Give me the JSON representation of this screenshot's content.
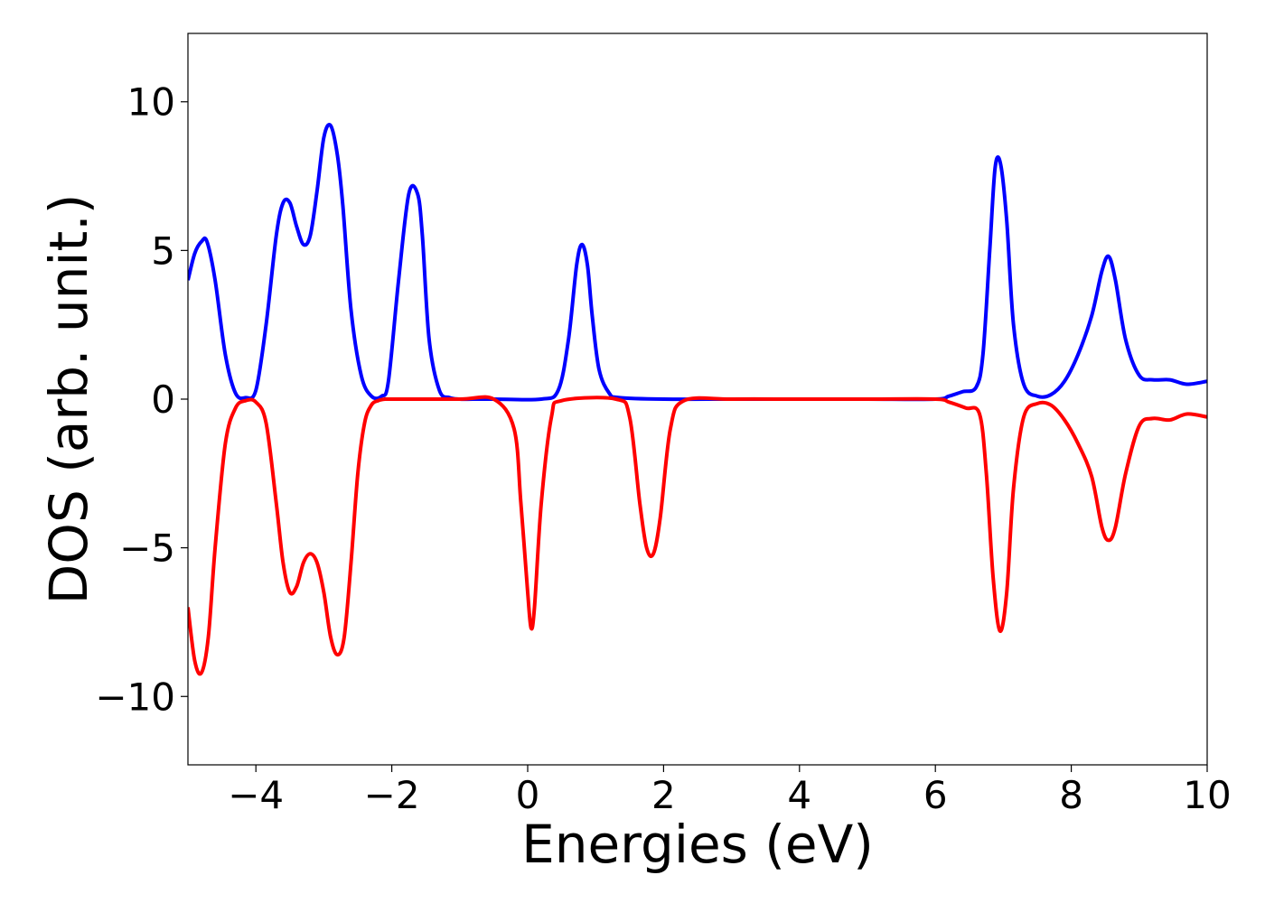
{
  "chart_data": {
    "type": "line",
    "title": "",
    "xlabel": "Energies (eV)",
    "ylabel": "DOS (arb. unit.)",
    "xlim": [
      -5,
      10
    ],
    "ylim": [
      -12.3,
      12.3
    ],
    "grid": false,
    "legend": "none",
    "x_ticks": [
      -4,
      -2,
      0,
      2,
      4,
      6,
      8,
      10
    ],
    "x_tick_labels": [
      "−4",
      "−2",
      "0",
      "2",
      "4",
      "6",
      "8",
      "10"
    ],
    "y_ticks": [
      10,
      5,
      0,
      -5,
      -10
    ],
    "y_tick_labels": [
      "10",
      "5",
      "0",
      "−5",
      "−10"
    ],
    "series": [
      {
        "color": "#0000ff",
        "x": [
          -5.0,
          -4.9,
          -4.8,
          -4.72,
          -4.6,
          -4.45,
          -4.3,
          -4.15,
          -4.0,
          -3.85,
          -3.7,
          -3.6,
          -3.5,
          -3.4,
          -3.3,
          -3.2,
          -3.1,
          -3.0,
          -2.9,
          -2.8,
          -2.72,
          -2.6,
          -2.45,
          -2.3,
          -2.15,
          -2.05,
          -1.9,
          -1.75,
          -1.62,
          -1.55,
          -1.45,
          -1.3,
          -1.15,
          -1.0,
          -0.8,
          -0.5,
          0.2,
          0.45,
          0.6,
          0.72,
          0.8,
          0.88,
          0.95,
          1.05,
          1.2,
          1.35,
          2.0,
          3.0,
          4.0,
          5.0,
          6.0,
          6.2,
          6.4,
          6.6,
          6.7,
          6.8,
          6.88,
          6.96,
          7.05,
          7.15,
          7.3,
          7.5,
          7.7,
          7.9,
          8.1,
          8.3,
          8.45,
          8.55,
          8.65,
          8.8,
          9.0,
          9.2,
          9.45,
          9.7,
          10.0
        ],
        "y": [
          4.0,
          4.9,
          5.3,
          5.3,
          4.0,
          1.5,
          0.2,
          0.05,
          0.3,
          2.5,
          5.5,
          6.6,
          6.6,
          5.8,
          5.2,
          5.5,
          7.0,
          8.8,
          9.2,
          8.2,
          6.5,
          3.0,
          0.8,
          0.1,
          0.1,
          0.6,
          4.0,
          6.9,
          6.9,
          5.5,
          2.0,
          0.3,
          0.05,
          0.0,
          0.0,
          0.0,
          0.0,
          0.3,
          2.0,
          4.5,
          5.2,
          4.5,
          2.8,
          1.0,
          0.2,
          0.05,
          0.0,
          0.0,
          0.0,
          0.0,
          0.0,
          0.1,
          0.25,
          0.4,
          1.5,
          5.0,
          7.8,
          7.9,
          6.0,
          2.5,
          0.5,
          0.1,
          0.15,
          0.6,
          1.5,
          2.8,
          4.3,
          4.8,
          4.0,
          2.0,
          0.8,
          0.65,
          0.65,
          0.5,
          0.6
        ]
      },
      {
        "color": "#ff0000",
        "x": [
          -5.0,
          -4.9,
          -4.8,
          -4.7,
          -4.6,
          -4.45,
          -4.3,
          -4.15,
          -4.0,
          -3.85,
          -3.7,
          -3.6,
          -3.5,
          -3.4,
          -3.3,
          -3.2,
          -3.1,
          -3.0,
          -2.9,
          -2.8,
          -2.7,
          -2.6,
          -2.5,
          -2.4,
          -2.3,
          -2.2,
          -2.1,
          -2.0,
          -1.0,
          -0.5,
          -0.2,
          -0.1,
          0.0,
          0.05,
          0.1,
          0.2,
          0.35,
          0.5,
          1.3,
          1.5,
          1.65,
          1.75,
          1.85,
          1.95,
          2.1,
          2.3,
          3.0,
          4.0,
          5.0,
          6.0,
          6.2,
          6.45,
          6.65,
          6.75,
          6.85,
          6.95,
          7.05,
          7.15,
          7.3,
          7.5,
          7.7,
          7.9,
          8.1,
          8.3,
          8.45,
          8.55,
          8.65,
          8.8,
          9.0,
          9.2,
          9.45,
          9.7,
          10.0
        ],
        "y": [
          -7.0,
          -8.8,
          -9.2,
          -8.0,
          -5.0,
          -1.5,
          -0.3,
          -0.05,
          -0.1,
          -0.8,
          -3.5,
          -5.5,
          -6.5,
          -6.3,
          -5.5,
          -5.2,
          -5.5,
          -6.5,
          -8.0,
          -8.6,
          -8.0,
          -5.5,
          -2.5,
          -0.8,
          -0.2,
          -0.05,
          -0.0,
          -0.0,
          -0.0,
          -0.0,
          -1.0,
          -3.5,
          -6.5,
          -7.7,
          -7.0,
          -3.5,
          -0.6,
          -0.05,
          -0.0,
          -0.6,
          -3.5,
          -5.0,
          -5.2,
          -4.0,
          -1.0,
          -0.05,
          -0.0,
          -0.0,
          -0.0,
          -0.0,
          -0.1,
          -0.3,
          -0.5,
          -2.5,
          -6.0,
          -7.8,
          -6.5,
          -3.0,
          -0.6,
          -0.15,
          -0.2,
          -0.7,
          -1.5,
          -2.6,
          -4.3,
          -4.75,
          -4.3,
          -2.5,
          -0.9,
          -0.65,
          -0.7,
          -0.5,
          -0.6
        ]
      }
    ]
  }
}
